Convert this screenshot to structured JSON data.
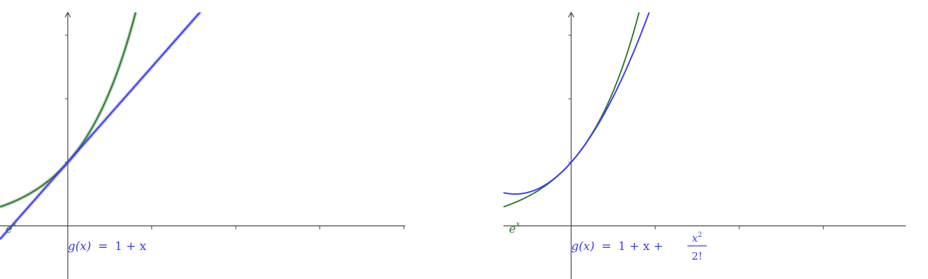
{
  "chart_data": [
    {
      "type": "line",
      "title": "",
      "xlabel": "",
      "ylabel": "",
      "xlim": [
        -1,
        5
      ],
      "ylim": [
        -0.8,
        3.35
      ],
      "grid": false,
      "series": [
        {
          "name": "e^x",
          "function": "exp",
          "color": "#2e7d32"
        },
        {
          "name": "g(x) = 1 + x",
          "function": "taylor1",
          "color": "#3b3bf0"
        }
      ],
      "labels": {
        "exp": "e",
        "exp_sup": "x",
        "g_lhs": "g(x)",
        "g_eq": "=",
        "g_rhs": "1 + x"
      }
    },
    {
      "type": "line",
      "title": "",
      "xlabel": "",
      "ylabel": "",
      "xlim": [
        -1,
        5
      ],
      "ylim": [
        -0.8,
        3.35
      ],
      "grid": false,
      "series": [
        {
          "name": "e^x",
          "function": "exp",
          "color": "#2e7d32"
        },
        {
          "name": "g(x) = 1 + x + x²/2!",
          "function": "taylor2",
          "color": "#3b3bf0"
        }
      ],
      "labels": {
        "exp": "e",
        "exp_sup": "x",
        "g_lhs": "g(x)",
        "g_eq": "=",
        "g_rhs": "1 + x +",
        "frac_num": "x",
        "frac_num_sup": "2",
        "frac_den": "2!"
      }
    }
  ]
}
